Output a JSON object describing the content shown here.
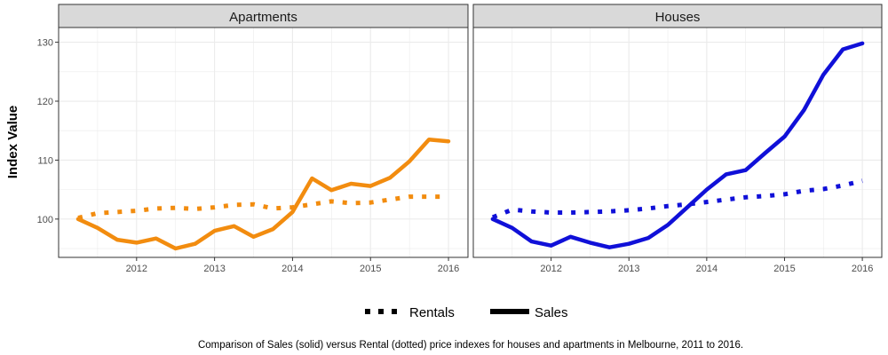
{
  "chart_data": [
    {
      "type": "line",
      "title": "Apartments",
      "ylabel": "Index Value",
      "xlim": [
        2011.0,
        2016.25
      ],
      "ylim": [
        93.5,
        132.5
      ],
      "x_ticks": [
        2012,
        2013,
        2014,
        2015,
        2016
      ],
      "y_ticks": [
        100,
        110,
        120,
        130
      ],
      "grid": true,
      "color": "#F28C0F",
      "series": [
        {
          "name": "Sales",
          "linetype": "solid",
          "points": [
            [
              2011.25,
              100.0
            ],
            [
              2011.5,
              98.5
            ],
            [
              2011.75,
              96.5
            ],
            [
              2012.0,
              96.0
            ],
            [
              2012.25,
              96.7
            ],
            [
              2012.5,
              95.0
            ],
            [
              2012.75,
              95.8
            ],
            [
              2013.0,
              98.0
            ],
            [
              2013.25,
              98.8
            ],
            [
              2013.5,
              97.0
            ],
            [
              2013.75,
              98.3
            ],
            [
              2014.0,
              101.2
            ],
            [
              2014.25,
              106.9
            ],
            [
              2014.5,
              104.9
            ],
            [
              2014.75,
              106.0
            ],
            [
              2015.0,
              105.6
            ],
            [
              2015.25,
              107.0
            ],
            [
              2015.5,
              109.8
            ],
            [
              2015.75,
              113.5
            ],
            [
              2016.0,
              113.2
            ]
          ]
        },
        {
          "name": "Rentals",
          "linetype": "dotted",
          "points": [
            [
              2011.25,
              100.2
            ],
            [
              2011.5,
              101.0
            ],
            [
              2011.75,
              101.2
            ],
            [
              2012.0,
              101.4
            ],
            [
              2012.25,
              101.8
            ],
            [
              2012.5,
              101.9
            ],
            [
              2012.75,
              101.7
            ],
            [
              2013.0,
              102.0
            ],
            [
              2013.25,
              102.4
            ],
            [
              2013.5,
              102.5
            ],
            [
              2013.75,
              101.8
            ],
            [
              2014.0,
              102.0
            ],
            [
              2014.25,
              102.5
            ],
            [
              2014.5,
              103.0
            ],
            [
              2014.75,
              102.7
            ],
            [
              2015.0,
              102.8
            ],
            [
              2015.25,
              103.3
            ],
            [
              2015.5,
              103.8
            ],
            [
              2015.75,
              103.8
            ],
            [
              2016.0,
              103.8
            ]
          ]
        }
      ]
    },
    {
      "type": "line",
      "title": "Houses",
      "xlim": [
        2011.0,
        2016.25
      ],
      "ylim": [
        93.5,
        132.5
      ],
      "x_ticks": [
        2012,
        2013,
        2014,
        2015,
        2016
      ],
      "y_ticks": [
        100,
        110,
        120,
        130
      ],
      "grid": true,
      "color": "#1010D8",
      "series": [
        {
          "name": "Sales",
          "linetype": "solid",
          "points": [
            [
              2011.25,
              100.0
            ],
            [
              2011.5,
              98.5
            ],
            [
              2011.75,
              96.2
            ],
            [
              2012.0,
              95.5
            ],
            [
              2012.25,
              97.0
            ],
            [
              2012.5,
              96.0
            ],
            [
              2012.75,
              95.2
            ],
            [
              2013.0,
              95.8
            ],
            [
              2013.25,
              96.8
            ],
            [
              2013.5,
              99.0
            ],
            [
              2013.75,
              102.0
            ],
            [
              2014.0,
              105.0
            ],
            [
              2014.25,
              107.6
            ],
            [
              2014.5,
              108.3
            ],
            [
              2014.75,
              111.2
            ],
            [
              2015.0,
              114.0
            ],
            [
              2015.25,
              118.5
            ],
            [
              2015.5,
              124.5
            ],
            [
              2015.75,
              128.8
            ],
            [
              2016.0,
              129.8
            ]
          ]
        },
        {
          "name": "Rentals",
          "linetype": "dotted",
          "points": [
            [
              2011.25,
              100.3
            ],
            [
              2011.5,
              101.6
            ],
            [
              2011.75,
              101.3
            ],
            [
              2012.0,
              101.1
            ],
            [
              2012.25,
              101.1
            ],
            [
              2012.5,
              101.2
            ],
            [
              2012.75,
              101.3
            ],
            [
              2013.0,
              101.5
            ],
            [
              2013.25,
              101.8
            ],
            [
              2013.5,
              102.2
            ],
            [
              2013.75,
              102.5
            ],
            [
              2014.0,
              102.9
            ],
            [
              2014.25,
              103.3
            ],
            [
              2014.5,
              103.7
            ],
            [
              2014.75,
              103.9
            ],
            [
              2015.0,
              104.2
            ],
            [
              2015.25,
              104.8
            ],
            [
              2015.5,
              105.1
            ],
            [
              2015.75,
              105.7
            ],
            [
              2016.0,
              106.5
            ]
          ]
        }
      ]
    }
  ],
  "legend": {
    "placement": "bottom",
    "items": [
      {
        "label": "Rentals",
        "linetype": "dotted"
      },
      {
        "label": "Sales",
        "linetype": "solid"
      }
    ]
  },
  "caption": "Comparison of Sales (solid) versus Rental (dotted) price indexes for houses and apartments in Melbourne, 2011 to 2016.",
  "colors": {
    "strip_background": "#D9D9D9",
    "grid": "#EBEBEB",
    "panel_border": "#333333"
  }
}
